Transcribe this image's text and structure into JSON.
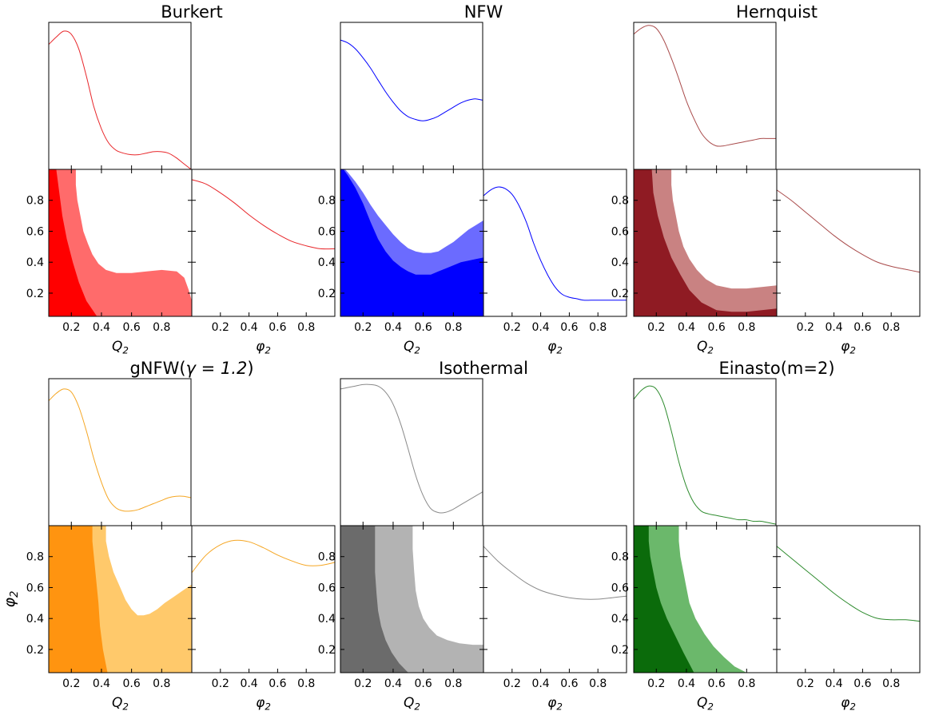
{
  "chart_data": [
    {
      "type": "area",
      "title": "Burkert",
      "xlabel": "$\\mathcal{Q}_2$",
      "xlabel2": "$\\phi_2$",
      "ylabel": "",
      "xlim": [
        0.05,
        1.0
      ],
      "ylim": [
        0.05,
        1.0
      ],
      "xticks": [
        "0.2",
        "0.4",
        "0.6",
        "0.8"
      ],
      "yticks": [
        "0.2",
        "0.4",
        "0.6",
        "0.8"
      ],
      "colors": {
        "line": "#e8262a",
        "inner": "#ff0000",
        "outer": "#ff6b6b"
      },
      "marginal_x": {
        "x": [
          0.05,
          0.1,
          0.15,
          0.2,
          0.25,
          0.3,
          0.35,
          0.4,
          0.45,
          0.5,
          0.55,
          0.6,
          0.65,
          0.7,
          0.75,
          0.8,
          0.85,
          0.9,
          0.95,
          1.0
        ],
        "y": [
          0.85,
          0.9,
          0.94,
          0.92,
          0.82,
          0.64,
          0.43,
          0.28,
          0.18,
          0.13,
          0.11,
          0.1,
          0.1,
          0.11,
          0.12,
          0.12,
          0.11,
          0.08,
          0.04,
          0.0
        ]
      },
      "marginal_y": {
        "x": [
          0.0,
          0.1,
          0.2,
          0.3,
          0.4,
          0.5,
          0.6,
          0.7,
          0.8,
          0.9,
          1.0
        ],
        "y": [
          0.93,
          0.9,
          0.84,
          0.77,
          0.69,
          0.62,
          0.56,
          0.51,
          0.48,
          0.46,
          0.46
        ]
      },
      "contour_outer": {
        "x": [
          0.05,
          0.23,
          0.23,
          0.24,
          0.26,
          0.28,
          0.31,
          0.34,
          0.38,
          0.43,
          0.5,
          0.6,
          0.7,
          0.8,
          0.9,
          0.95,
          0.98,
          1.0,
          1.0,
          0.05
        ],
        "y": [
          1.0,
          1.0,
          0.9,
          0.8,
          0.7,
          0.6,
          0.52,
          0.45,
          0.39,
          0.35,
          0.33,
          0.33,
          0.34,
          0.35,
          0.34,
          0.3,
          0.22,
          0.15,
          0.05,
          0.05
        ]
      },
      "contour_inner": {
        "x": [
          0.05,
          0.1,
          0.12,
          0.14,
          0.17,
          0.21,
          0.25,
          0.3,
          0.37,
          0.05
        ],
        "y": [
          1.0,
          1.0,
          0.85,
          0.7,
          0.55,
          0.4,
          0.27,
          0.15,
          0.05,
          0.05
        ]
      }
    },
    {
      "type": "area",
      "title": "NFW",
      "xlabel": "$\\mathcal{Q}_2$",
      "xlabel2": "$\\phi_2$",
      "ylabel": "",
      "xlim": [
        0.05,
        1.0
      ],
      "ylim": [
        0.05,
        1.0
      ],
      "xticks": [
        "0.2",
        "0.4",
        "0.6",
        "0.8"
      ],
      "yticks": [
        "0.2",
        "0.4",
        "0.6",
        "0.8"
      ],
      "colors": {
        "line": "#0000ff",
        "inner": "#0000ff",
        "outer": "#6b6bff"
      },
      "marginal_x": {
        "x": [
          0.05,
          0.1,
          0.15,
          0.2,
          0.25,
          0.3,
          0.35,
          0.4,
          0.45,
          0.5,
          0.55,
          0.6,
          0.65,
          0.7,
          0.75,
          0.8,
          0.85,
          0.9,
          0.95,
          1.0
        ],
        "y": [
          0.88,
          0.86,
          0.82,
          0.76,
          0.69,
          0.61,
          0.53,
          0.46,
          0.4,
          0.36,
          0.34,
          0.33,
          0.34,
          0.36,
          0.39,
          0.42,
          0.45,
          0.47,
          0.48,
          0.47
        ]
      },
      "marginal_y": {
        "x": [
          0.0,
          0.05,
          0.1,
          0.15,
          0.2,
          0.25,
          0.3,
          0.35,
          0.4,
          0.45,
          0.5,
          0.55,
          0.6,
          0.65,
          0.7,
          0.75,
          0.8,
          0.9,
          1.0
        ],
        "y": [
          0.82,
          0.86,
          0.88,
          0.87,
          0.83,
          0.75,
          0.64,
          0.5,
          0.38,
          0.28,
          0.2,
          0.15,
          0.13,
          0.12,
          0.11,
          0.11,
          0.11,
          0.11,
          0.11
        ]
      },
      "contour_outer": {
        "x": [
          0.05,
          1.0,
          1.0,
          0.95,
          0.9,
          0.85,
          0.8,
          0.75,
          0.7,
          0.65,
          0.6,
          0.55,
          0.5,
          0.45,
          0.4,
          0.35,
          0.3,
          0.25,
          0.2,
          0.15,
          0.1,
          0.08,
          0.06,
          0.05
        ],
        "y": [
          0.05,
          0.05,
          0.67,
          0.64,
          0.61,
          0.57,
          0.53,
          0.5,
          0.47,
          0.46,
          0.46,
          0.47,
          0.49,
          0.53,
          0.58,
          0.64,
          0.7,
          0.77,
          0.85,
          0.92,
          0.98,
          1.0,
          1.0,
          1.0
        ]
      },
      "contour_inner": {
        "x": [
          0.05,
          1.0,
          1.0,
          0.95,
          0.9,
          0.85,
          0.8,
          0.75,
          0.7,
          0.65,
          0.6,
          0.55,
          0.5,
          0.45,
          0.4,
          0.35,
          0.3,
          0.25,
          0.2,
          0.15,
          0.1,
          0.07,
          0.05
        ],
        "y": [
          0.05,
          0.05,
          0.43,
          0.42,
          0.41,
          0.4,
          0.38,
          0.36,
          0.34,
          0.32,
          0.32,
          0.32,
          0.34,
          0.37,
          0.41,
          0.47,
          0.55,
          0.66,
          0.78,
          0.88,
          0.96,
          1.0,
          1.0
        ]
      }
    },
    {
      "type": "area",
      "title": "Hernquist",
      "xlabel": "$\\mathcal{Q}_2$",
      "xlabel2": "$\\phi_2$",
      "ylabel": "",
      "xlim": [
        0.05,
        1.0
      ],
      "ylim": [
        0.05,
        1.0
      ],
      "xticks": [
        "0.2",
        "0.4",
        "0.6",
        "0.8"
      ],
      "yticks": [
        "0.2",
        "0.4",
        "0.6",
        "0.8"
      ],
      "colors": {
        "line": "#a94b4b",
        "inner": "#8f1b23",
        "outer": "#c98282"
      },
      "marginal_x": {
        "x": [
          0.05,
          0.1,
          0.15,
          0.2,
          0.25,
          0.3,
          0.35,
          0.4,
          0.45,
          0.5,
          0.55,
          0.6,
          0.65,
          0.7,
          0.75,
          0.8,
          0.85,
          0.9,
          0.95,
          1.0
        ],
        "y": [
          0.92,
          0.96,
          0.98,
          0.96,
          0.88,
          0.76,
          0.62,
          0.47,
          0.35,
          0.25,
          0.19,
          0.16,
          0.16,
          0.17,
          0.18,
          0.19,
          0.2,
          0.21,
          0.21,
          0.21
        ]
      },
      "marginal_y": {
        "x": [
          0.0,
          0.1,
          0.2,
          0.3,
          0.4,
          0.5,
          0.6,
          0.7,
          0.8,
          0.9,
          1.0
        ],
        "y": [
          0.86,
          0.79,
          0.71,
          0.63,
          0.55,
          0.48,
          0.42,
          0.37,
          0.34,
          0.32,
          0.3
        ]
      },
      "contour_outer": {
        "x": [
          0.05,
          0.3,
          0.3,
          0.31,
          0.33,
          0.35,
          0.38,
          0.42,
          0.47,
          0.53,
          0.6,
          0.7,
          0.8,
          0.9,
          1.0,
          1.0,
          0.05
        ],
        "y": [
          1.0,
          1.0,
          0.9,
          0.8,
          0.7,
          0.6,
          0.5,
          0.42,
          0.35,
          0.29,
          0.25,
          0.23,
          0.23,
          0.24,
          0.25,
          0.05,
          0.05
        ]
      },
      "contour_inner": {
        "x": [
          0.05,
          0.17,
          0.18,
          0.21,
          0.25,
          0.3,
          0.36,
          0.42,
          0.5,
          0.6,
          0.7,
          0.8,
          0.9,
          1.0,
          1.0,
          0.05
        ],
        "y": [
          1.0,
          1.0,
          0.85,
          0.7,
          0.56,
          0.43,
          0.32,
          0.22,
          0.14,
          0.09,
          0.08,
          0.08,
          0.09,
          0.1,
          0.05,
          0.05
        ]
      }
    },
    {
      "type": "area",
      "title": "gNFW($\\gamma = 1.2$)",
      "xlabel": "$\\mathcal{Q}_2$",
      "xlabel2": "$\\phi_2$",
      "ylabel": "$\\phi_2$",
      "xlim": [
        0.05,
        1.0
      ],
      "ylim": [
        0.05,
        1.0
      ],
      "xticks": [
        "0.2",
        "0.4",
        "0.6",
        "0.8"
      ],
      "yticks": [
        "0.2",
        "0.4",
        "0.6",
        "0.8"
      ],
      "colors": {
        "line": "#f5a623",
        "inner": "#ff9410",
        "outer": "#ffc96b"
      },
      "marginal_x": {
        "x": [
          0.05,
          0.1,
          0.15,
          0.2,
          0.25,
          0.3,
          0.35,
          0.4,
          0.45,
          0.5,
          0.55,
          0.6,
          0.65,
          0.7,
          0.75,
          0.8,
          0.85,
          0.9,
          0.95,
          1.0
        ],
        "y": [
          0.85,
          0.9,
          0.93,
          0.91,
          0.81,
          0.65,
          0.46,
          0.3,
          0.18,
          0.12,
          0.1,
          0.1,
          0.11,
          0.13,
          0.15,
          0.17,
          0.19,
          0.2,
          0.2,
          0.19
        ]
      },
      "marginal_y": {
        "x": [
          0.0,
          0.1,
          0.2,
          0.3,
          0.4,
          0.5,
          0.6,
          0.7,
          0.8,
          0.9,
          1.0
        ],
        "y": [
          0.68,
          0.8,
          0.87,
          0.9,
          0.89,
          0.85,
          0.8,
          0.76,
          0.73,
          0.73,
          0.75
        ]
      },
      "contour_outer": {
        "x": [
          0.05,
          0.43,
          0.43,
          0.45,
          0.48,
          0.52,
          0.56,
          0.6,
          0.64,
          0.68,
          0.72,
          0.77,
          0.82,
          0.88,
          0.94,
          1.0,
          1.0,
          0.05
        ],
        "y": [
          1.0,
          1.0,
          0.9,
          0.8,
          0.7,
          0.61,
          0.52,
          0.46,
          0.42,
          0.42,
          0.43,
          0.46,
          0.5,
          0.54,
          0.58,
          0.62,
          0.05,
          0.05
        ]
      },
      "contour_inner": {
        "x": [
          0.05,
          0.34,
          0.34,
          0.35,
          0.36,
          0.37,
          0.38,
          0.39,
          0.41,
          0.44,
          0.05
        ],
        "y": [
          1.0,
          1.0,
          0.9,
          0.8,
          0.7,
          0.6,
          0.5,
          0.35,
          0.2,
          0.05,
          0.05
        ]
      }
    },
    {
      "type": "area",
      "title": "Isothermal",
      "xlabel": "$\\mathcal{Q}_2$",
      "xlabel2": "$\\phi_2$",
      "ylabel": "",
      "xlim": [
        0.05,
        1.0
      ],
      "ylim": [
        0.05,
        1.0
      ],
      "xticks": [
        "0.2",
        "0.4",
        "0.6",
        "0.8"
      ],
      "yticks": [
        "0.2",
        "0.4",
        "0.6",
        "0.8"
      ],
      "colors": {
        "line": "#8a8a8a",
        "inner": "#6b6b6b",
        "outer": "#b3b3b3"
      },
      "marginal_x": {
        "x": [
          0.05,
          0.1,
          0.15,
          0.2,
          0.25,
          0.3,
          0.35,
          0.4,
          0.45,
          0.5,
          0.55,
          0.6,
          0.65,
          0.7,
          0.75,
          0.8,
          0.85,
          0.9,
          0.95,
          1.0
        ],
        "y": [
          0.93,
          0.94,
          0.95,
          0.96,
          0.96,
          0.95,
          0.91,
          0.83,
          0.7,
          0.53,
          0.35,
          0.21,
          0.12,
          0.09,
          0.09,
          0.11,
          0.14,
          0.17,
          0.2,
          0.23
        ]
      },
      "marginal_y": {
        "x": [
          0.0,
          0.1,
          0.2,
          0.3,
          0.4,
          0.5,
          0.6,
          0.7,
          0.8,
          0.9,
          1.0
        ],
        "y": [
          0.86,
          0.76,
          0.68,
          0.61,
          0.56,
          0.53,
          0.51,
          0.5,
          0.5,
          0.51,
          0.52
        ]
      },
      "contour_outer": {
        "x": [
          0.05,
          0.53,
          0.53,
          0.54,
          0.55,
          0.57,
          0.6,
          0.64,
          0.69,
          0.76,
          0.84,
          0.93,
          1.0,
          1.0,
          0.05
        ],
        "y": [
          1.0,
          1.0,
          0.85,
          0.7,
          0.58,
          0.48,
          0.4,
          0.34,
          0.29,
          0.26,
          0.24,
          0.23,
          0.23,
          0.05,
          0.05
        ]
      },
      "contour_inner": {
        "x": [
          0.05,
          0.28,
          0.28,
          0.28,
          0.29,
          0.3,
          0.32,
          0.35,
          0.39,
          0.44,
          0.5,
          0.05
        ],
        "y": [
          1.0,
          1.0,
          0.85,
          0.7,
          0.56,
          0.45,
          0.35,
          0.26,
          0.18,
          0.11,
          0.05,
          0.05
        ]
      }
    },
    {
      "type": "area",
      "title": "Einasto(m=2)",
      "xlabel": "$\\mathcal{Q}_2$",
      "xlabel2": "$\\phi_2$",
      "ylabel": "",
      "xlim": [
        0.05,
        1.0
      ],
      "ylim": [
        0.05,
        1.0
      ],
      "xticks": [
        "0.2",
        "0.4",
        "0.6",
        "0.8"
      ],
      "yticks": [
        "0.2",
        "0.4",
        "0.6",
        "0.8"
      ],
      "colors": {
        "line": "#2e8b2e",
        "inner": "#0b6b0b",
        "outer": "#6bb86b"
      },
      "marginal_x": {
        "x": [
          0.05,
          0.1,
          0.15,
          0.2,
          0.25,
          0.3,
          0.35,
          0.4,
          0.45,
          0.5,
          0.55,
          0.6,
          0.65,
          0.7,
          0.75,
          0.8,
          0.85,
          0.9,
          0.95,
          1.0
        ],
        "y": [
          0.86,
          0.92,
          0.95,
          0.93,
          0.83,
          0.65,
          0.44,
          0.27,
          0.16,
          0.1,
          0.08,
          0.07,
          0.06,
          0.05,
          0.04,
          0.04,
          0.03,
          0.03,
          0.02,
          0.01
        ]
      },
      "marginal_y": {
        "x": [
          0.0,
          0.1,
          0.2,
          0.3,
          0.4,
          0.5,
          0.6,
          0.7,
          0.8,
          0.9,
          1.0
        ],
        "y": [
          0.86,
          0.78,
          0.7,
          0.62,
          0.54,
          0.47,
          0.41,
          0.37,
          0.36,
          0.36,
          0.35
        ]
      },
      "contour_outer": {
        "x": [
          0.05,
          0.35,
          0.35,
          0.36,
          0.38,
          0.4,
          0.42,
          0.46,
          0.52,
          0.58,
          0.65,
          0.72,
          0.8,
          0.05
        ],
        "y": [
          1.0,
          1.0,
          0.9,
          0.8,
          0.7,
          0.6,
          0.5,
          0.4,
          0.3,
          0.22,
          0.15,
          0.09,
          0.05,
          0.05
        ]
      },
      "contour_inner": {
        "x": [
          0.05,
          0.15,
          0.15,
          0.16,
          0.18,
          0.2,
          0.23,
          0.27,
          0.32,
          0.38,
          0.45,
          0.05
        ],
        "y": [
          1.0,
          1.0,
          0.9,
          0.8,
          0.7,
          0.6,
          0.5,
          0.4,
          0.3,
          0.18,
          0.05,
          0.05
        ]
      }
    }
  ]
}
